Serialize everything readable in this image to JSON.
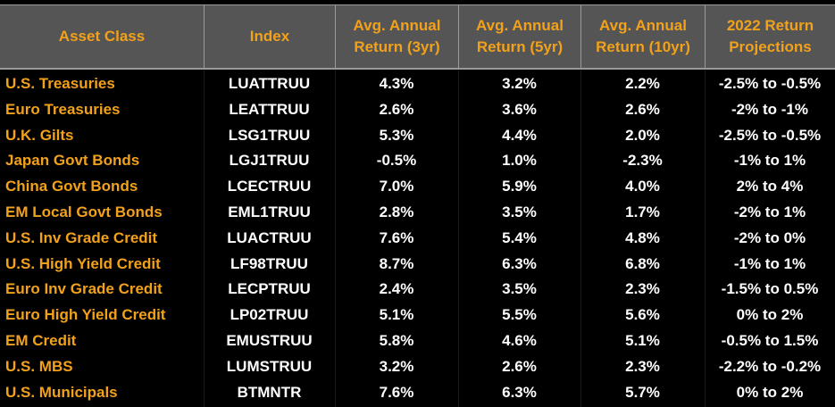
{
  "table": {
    "headers": {
      "asset_class": "Asset Class",
      "index": "Index",
      "ret3_line1": "Avg. Annual",
      "ret3_line2": "Return (3yr)",
      "ret5_line1": "Avg. Annual",
      "ret5_line2": "Return (5yr)",
      "ret10_line1": "Avg. Annual",
      "ret10_line2": "Return (10yr)",
      "proj_line1": "2022 Return",
      "proj_line2": "Projections"
    },
    "colors": {
      "header_bg": "#555555",
      "header_text": "#f2a11b",
      "asset_text": "#f2a11b",
      "value_text": "#ffffff",
      "background": "#000000"
    }
  },
  "chart_data": {
    "type": "table",
    "columns": [
      "Asset Class",
      "Index",
      "Avg. Annual Return (3yr)",
      "Avg. Annual Return (5yr)",
      "Avg. Annual Return (10yr)",
      "2022 Return Projections"
    ],
    "rows": [
      [
        "U.S. Treasuries",
        "LUATTRUU",
        "4.3%",
        "3.2%",
        "2.2%",
        "-2.5% to -0.5%"
      ],
      [
        "Euro Treasuries",
        "LEATTRUU",
        "2.6%",
        "3.6%",
        "2.6%",
        "-2% to -1%"
      ],
      [
        "U.K. Gilts",
        "LSG1TRUU",
        "5.3%",
        "4.4%",
        "2.0%",
        "-2.5% to -0.5%"
      ],
      [
        "Japan Govt Bonds",
        "LGJ1TRUU",
        "-0.5%",
        "1.0%",
        "-2.3%",
        "-1% to 1%"
      ],
      [
        "China Govt Bonds",
        "LCECTRUU",
        "7.0%",
        "5.9%",
        "4.0%",
        "2% to 4%"
      ],
      [
        "EM Local Govt Bonds",
        "EML1TRUU",
        "2.8%",
        "3.5%",
        "1.7%",
        "-2% to 1%"
      ],
      [
        "U.S. Inv Grade Credit",
        "LUACTRUU",
        "7.6%",
        "5.4%",
        "4.8%",
        "-2% to 0%"
      ],
      [
        "U.S. High Yield Credit",
        "LF98TRUU",
        "8.7%",
        "6.3%",
        "6.8%",
        "-1% to 1%"
      ],
      [
        "Euro Inv Grade Credit",
        "LECPTRUU",
        "2.4%",
        "3.5%",
        "2.3%",
        "-1.5% to 0.5%"
      ],
      [
        "Euro High Yield Credit",
        "LP02TRUU",
        "5.1%",
        "5.5%",
        "5.6%",
        "0% to 2%"
      ],
      [
        "EM Credit",
        "EMUSTRUU",
        "5.8%",
        "4.6%",
        "5.1%",
        "-0.5% to 1.5%"
      ],
      [
        "U.S. MBS",
        "LUMSTRUU",
        "3.2%",
        "2.6%",
        "2.3%",
        "-2.2% to -0.2%"
      ],
      [
        "U.S. Municipals",
        "BTMNTR",
        "7.6%",
        "6.3%",
        "5.7%",
        "0% to 2%"
      ]
    ]
  }
}
